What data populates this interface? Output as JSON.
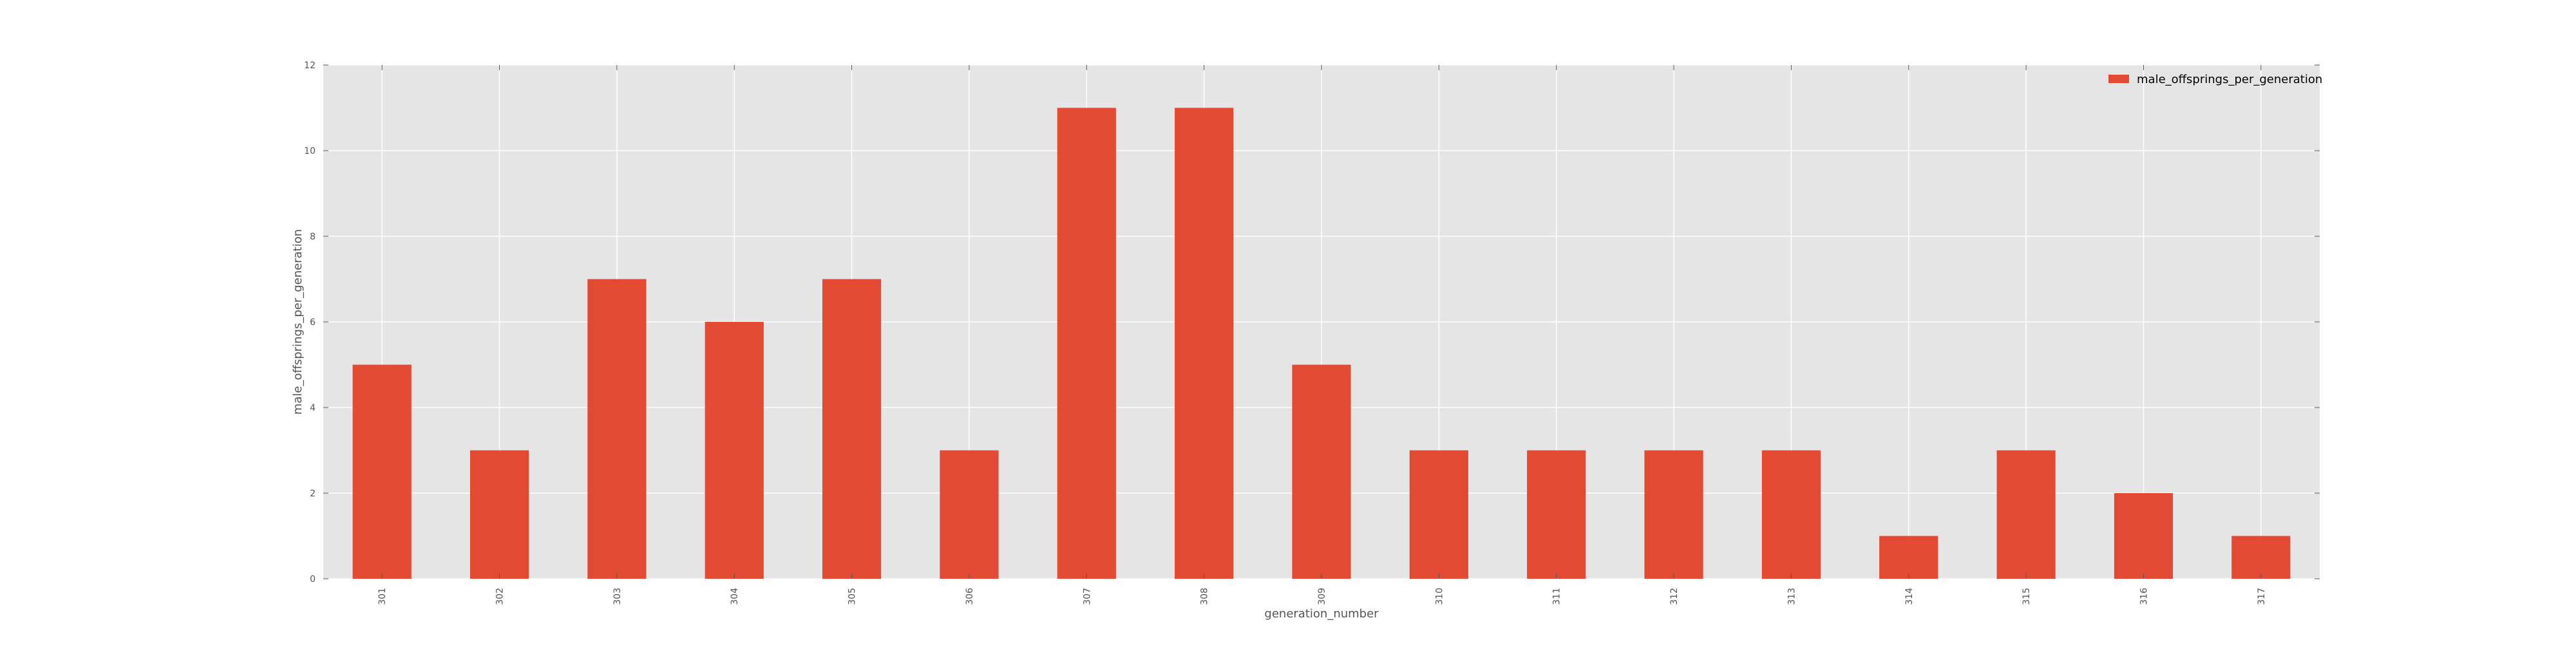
{
  "chart_data": {
    "type": "bar",
    "categories": [
      "301",
      "302",
      "303",
      "304",
      "305",
      "306",
      "307",
      "308",
      "309",
      "310",
      "311",
      "312",
      "313",
      "314",
      "315",
      "316",
      "317"
    ],
    "series": [
      {
        "name": "male_offsprings_per_generation",
        "values": [
          5,
          3,
          7,
          6,
          7,
          3,
          11,
          11,
          5,
          3,
          3,
          3,
          3,
          1,
          3,
          2,
          1
        ]
      }
    ],
    "xlabel": "generation_number",
    "ylabel": "male_offsprings_per_generation",
    "ylim": [
      0,
      12
    ],
    "yticks": [
      0,
      2,
      4,
      6,
      8,
      10,
      12
    ],
    "grid": true,
    "legend_position": "top-right",
    "colors": {
      "bar": "#E24A33",
      "plot_background": "#E5E5E5",
      "grid": "#FFFFFF",
      "text": "#555555"
    }
  }
}
